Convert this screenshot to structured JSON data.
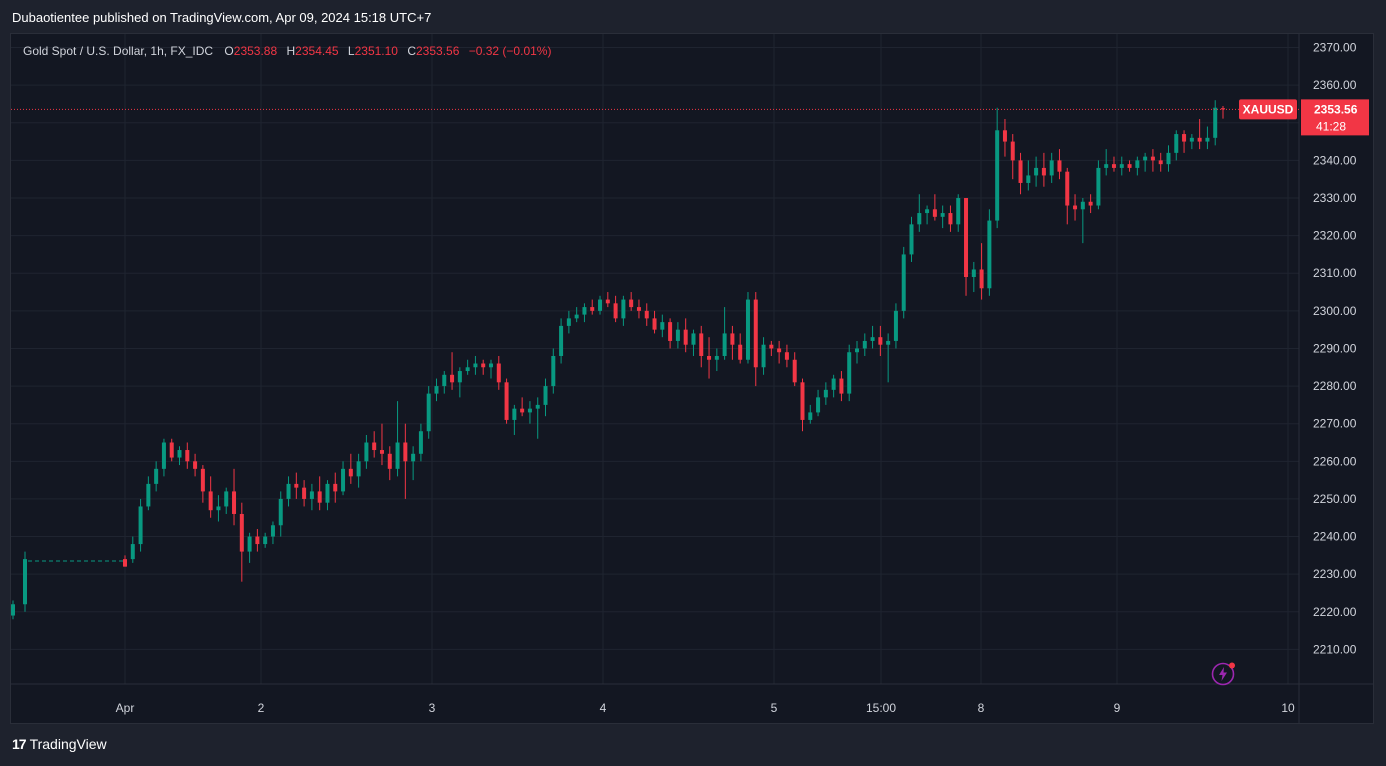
{
  "header": {
    "publisher": "Dubaotientee published on TradingView.com, Apr 09, 2024 15:18 UTC+7"
  },
  "legend": {
    "symbol": "Gold Spot / U.S. Dollar, 1h, FX_IDC",
    "o_label": "O",
    "o_value": "2353.88",
    "h_label": "H",
    "h_value": "2354.45",
    "l_label": "L",
    "l_value": "2351.10",
    "c_label": "C",
    "c_value": "2353.56",
    "change": "−0.32 (−0.01%)"
  },
  "price_tag": {
    "ticker": "XAUUSD",
    "price": "2353.56",
    "countdown": "41:28"
  },
  "footer": {
    "brand": "TradingView",
    "logo_glyph": "17"
  },
  "colors": {
    "up": "#089981",
    "down": "#f23645",
    "background": "#131722",
    "grid": "#1f2430"
  },
  "icons": {
    "alert": "lightning-bolt-icon"
  },
  "chart_data": {
    "type": "candlestick",
    "title": "Gold Spot / U.S. Dollar, 1h, FX_IDC",
    "y_ticks": [
      "2370.00",
      "2360.00",
      "2350.00",
      "2340.00",
      "2330.00",
      "2320.00",
      "2310.00",
      "2300.00",
      "2290.00",
      "2280.00",
      "2270.00",
      "2260.00",
      "2250.00",
      "2240.00",
      "2230.00",
      "2220.00",
      "2210.00"
    ],
    "x_ticks": [
      "Apr",
      "2",
      "3",
      "4",
      "5",
      "15:00",
      "8",
      "9",
      "10"
    ],
    "ylim": [
      2200.8,
      2373.6
    ],
    "grid": true,
    "last_price": 2353.56,
    "ohlc": [
      [
        2219,
        2223,
        2218,
        2222
      ],
      [
        2222,
        2236,
        2220,
        2234
      ],
      [
        2234,
        2235,
        2232,
        2232
      ],
      [
        2234,
        2240,
        2233,
        2238
      ],
      [
        2238,
        2250,
        2236,
        2248
      ],
      [
        2248,
        2256,
        2247,
        2254
      ],
      [
        2254,
        2260,
        2252,
        2258
      ],
      [
        2258,
        2266,
        2256,
        2265
      ],
      [
        2265,
        2266,
        2260,
        2261
      ],
      [
        2261,
        2264,
        2259,
        2263
      ],
      [
        2263,
        2265,
        2258,
        2260
      ],
      [
        2260,
        2262,
        2256,
        2258
      ],
      [
        2258,
        2259,
        2249,
        2252
      ],
      [
        2252,
        2256,
        2245,
        2247
      ],
      [
        2247,
        2251,
        2244,
        2248
      ],
      [
        2248,
        2253,
        2246,
        2252
      ],
      [
        2252,
        2258,
        2243,
        2246
      ],
      [
        2246,
        2249,
        2228,
        2236
      ],
      [
        2236,
        2241,
        2233,
        2240
      ],
      [
        2240,
        2242,
        2236,
        2238
      ],
      [
        2238,
        2241,
        2237,
        2240
      ],
      [
        2240,
        2244,
        2238,
        2243
      ],
      [
        2243,
        2252,
        2240,
        2250
      ],
      [
        2250,
        2256,
        2248,
        2254
      ],
      [
        2254,
        2257,
        2250,
        2253
      ],
      [
        2253,
        2255,
        2248,
        2250
      ],
      [
        2250,
        2254,
        2247,
        2252
      ],
      [
        2252,
        2256,
        2247,
        2249
      ],
      [
        2249,
        2255,
        2247,
        2254
      ],
      [
        2254,
        2257,
        2249,
        2252
      ],
      [
        2252,
        2260,
        2251,
        2258
      ],
      [
        2258,
        2262,
        2254,
        2256
      ],
      [
        2256,
        2262,
        2253,
        2260
      ],
      [
        2260,
        2267,
        2258,
        2265
      ],
      [
        2265,
        2268,
        2261,
        2263
      ],
      [
        2263,
        2270,
        2259,
        2262
      ],
      [
        2262,
        2264,
        2255,
        2258
      ],
      [
        2258,
        2276,
        2256,
        2265
      ],
      [
        2265,
        2270,
        2250,
        2260
      ],
      [
        2260,
        2264,
        2255,
        2262
      ],
      [
        2262,
        2270,
        2260,
        2268
      ],
      [
        2268,
        2280,
        2266,
        2278
      ],
      [
        2278,
        2282,
        2276,
        2280
      ],
      [
        2280,
        2284,
        2278,
        2283
      ],
      [
        2283,
        2289,
        2279,
        2281
      ],
      [
        2281,
        2285,
        2277,
        2284
      ],
      [
        2284,
        2287,
        2283,
        2285
      ],
      [
        2285,
        2288,
        2283,
        2286
      ],
      [
        2286,
        2287,
        2283,
        2285
      ],
      [
        2285,
        2287,
        2282,
        2286
      ],
      [
        2286,
        2288,
        2279,
        2281
      ],
      [
        2281,
        2282,
        2270,
        2271
      ],
      [
        2271,
        2275,
        2267,
        2274
      ],
      [
        2274,
        2277,
        2272,
        2273
      ],
      [
        2273,
        2276,
        2270,
        2274
      ],
      [
        2274,
        2277,
        2266,
        2275
      ],
      [
        2275,
        2282,
        2272,
        2280
      ],
      [
        2280,
        2290,
        2278,
        2288
      ],
      [
        2288,
        2298,
        2286,
        2296
      ],
      [
        2296,
        2300,
        2294,
        2298
      ],
      [
        2298,
        2301,
        2297,
        2299
      ],
      [
        2299,
        2302,
        2297,
        2301
      ],
      [
        2301,
        2303,
        2299,
        2300
      ],
      [
        2300,
        2304,
        2299,
        2303
      ],
      [
        2303,
        2305,
        2301,
        2302
      ],
      [
        2302,
        2304,
        2297,
        2298
      ],
      [
        2298,
        2304,
        2296,
        2303
      ],
      [
        2303,
        2305,
        2300,
        2301
      ],
      [
        2301,
        2303,
        2298,
        2300
      ],
      [
        2300,
        2302,
        2296,
        2298
      ],
      [
        2298,
        2300,
        2294,
        2295
      ],
      [
        2295,
        2299,
        2293,
        2297
      ],
      [
        2297,
        2298,
        2290,
        2292
      ],
      [
        2292,
        2297,
        2290,
        2295
      ],
      [
        2295,
        2298,
        2289,
        2291
      ],
      [
        2291,
        2295,
        2288,
        2294
      ],
      [
        2294,
        2296,
        2285,
        2288
      ],
      [
        2288,
        2293,
        2282,
        2287
      ],
      [
        2287,
        2290,
        2284,
        2288
      ],
      [
        2288,
        2301,
        2287,
        2294
      ],
      [
        2294,
        2296,
        2287,
        2291
      ],
      [
        2291,
        2294,
        2286,
        2287
      ],
      [
        2287,
        2305,
        2286,
        2303
      ],
      [
        2303,
        2305,
        2280,
        2285
      ],
      [
        2285,
        2293,
        2283,
        2291
      ],
      [
        2291,
        2292,
        2288,
        2290
      ],
      [
        2290,
        2292,
        2286,
        2289
      ],
      [
        2289,
        2291,
        2285,
        2287
      ],
      [
        2287,
        2289,
        2280,
        2281
      ],
      [
        2281,
        2282,
        2268,
        2271
      ],
      [
        2271,
        2275,
        2270,
        2273
      ],
      [
        2273,
        2279,
        2272,
        2277
      ],
      [
        2277,
        2281,
        2275,
        2279
      ],
      [
        2279,
        2283,
        2277,
        2282
      ],
      [
        2282,
        2284,
        2276,
        2278
      ],
      [
        2278,
        2291,
        2276,
        2289
      ],
      [
        2289,
        2292,
        2286,
        2290
      ],
      [
        2290,
        2294,
        2288,
        2292
      ],
      [
        2292,
        2296,
        2290,
        2293
      ],
      [
        2293,
        2296,
        2288,
        2291
      ],
      [
        2291,
        2294,
        2281,
        2292
      ],
      [
        2292,
        2302,
        2290,
        2300
      ],
      [
        2300,
        2317,
        2298,
        2315
      ],
      [
        2315,
        2325,
        2313,
        2323
      ],
      [
        2323,
        2331,
        2321,
        2326
      ],
      [
        2326,
        2328,
        2323,
        2327
      ],
      [
        2327,
        2331,
        2324,
        2325
      ],
      [
        2325,
        2328,
        2322,
        2326
      ],
      [
        2326,
        2328,
        2321,
        2323
      ],
      [
        2323,
        2331,
        2321,
        2330
      ],
      [
        2330,
        2330,
        2304,
        2309
      ],
      [
        2309,
        2313,
        2305,
        2311
      ],
      [
        2311,
        2318,
        2303,
        2306
      ],
      [
        2306,
        2327,
        2304,
        2324
      ],
      [
        2324,
        2354,
        2322,
        2348
      ],
      [
        2348,
        2351,
        2341,
        2345
      ],
      [
        2345,
        2347,
        2335,
        2340
      ],
      [
        2340,
        2342,
        2331,
        2334
      ],
      [
        2334,
        2340,
        2332,
        2336
      ],
      [
        2336,
        2341,
        2333,
        2338
      ],
      [
        2338,
        2342,
        2333,
        2336
      ],
      [
        2336,
        2342,
        2334,
        2340
      ],
      [
        2340,
        2343,
        2335,
        2337
      ],
      [
        2337,
        2338,
        2323,
        2328
      ],
      [
        2328,
        2331,
        2324,
        2327
      ],
      [
        2327,
        2330,
        2318,
        2329
      ],
      [
        2329,
        2331,
        2326,
        2328
      ],
      [
        2328,
        2340,
        2327,
        2338
      ],
      [
        2338,
        2343,
        2336,
        2339
      ],
      [
        2339,
        2341,
        2337,
        2338
      ],
      [
        2338,
        2341,
        2336,
        2339
      ],
      [
        2339,
        2340,
        2337,
        2338
      ],
      [
        2338,
        2341,
        2336,
        2340
      ],
      [
        2340,
        2342,
        2337,
        2341
      ],
      [
        2341,
        2343,
        2337,
        2340
      ],
      [
        2340,
        2342,
        2337,
        2339
      ],
      [
        2339,
        2344,
        2337,
        2342
      ],
      [
        2342,
        2348,
        2340,
        2347
      ],
      [
        2347,
        2348,
        2342,
        2345
      ],
      [
        2345,
        2347,
        2343,
        2346
      ],
      [
        2346,
        2351,
        2343,
        2345
      ],
      [
        2345,
        2349,
        2343,
        2346
      ],
      [
        2346,
        2356,
        2344,
        2354
      ],
      [
        2353.88,
        2354.45,
        2351.1,
        2353.56
      ]
    ]
  }
}
